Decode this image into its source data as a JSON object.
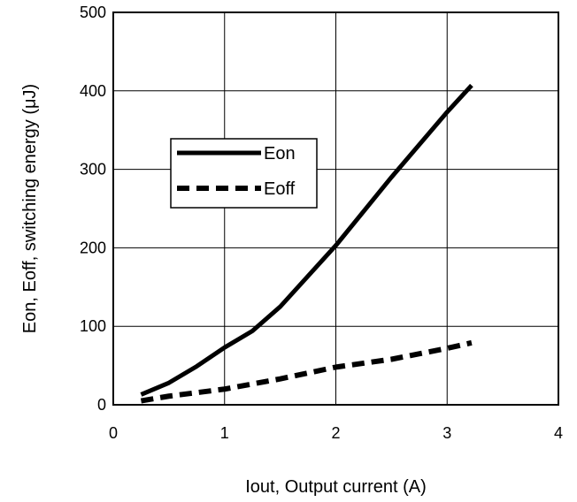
{
  "chart_data": {
    "type": "line",
    "xlabel": "Iout, Output current (A)",
    "ylabel": "Eon, Eoff, switching energy (μJ)",
    "xlim": [
      0,
      4
    ],
    "ylim": [
      0,
      500
    ],
    "x_ticks": [
      "0",
      "1",
      "2",
      "3",
      "4"
    ],
    "y_ticks": [
      "0",
      "100",
      "200",
      "300",
      "400",
      "500"
    ],
    "grid": true,
    "legend_position": "upper-left",
    "series": [
      {
        "name": "Eon",
        "style": "solid",
        "x": [
          0.25,
          0.5,
          0.75,
          1.0,
          1.25,
          1.5,
          2.0,
          2.5,
          3.0,
          3.22
        ],
        "y": [
          13,
          28,
          49,
          73,
          94,
          125,
          203,
          290,
          373,
          407
        ]
      },
      {
        "name": "Eoff",
        "style": "dashed",
        "x": [
          0.25,
          0.5,
          1.0,
          1.5,
          2.0,
          2.5,
          3.0,
          3.22
        ],
        "y": [
          5,
          11,
          20,
          33,
          48,
          58,
          72,
          79
        ]
      }
    ]
  },
  "colors": {
    "line": "#000000",
    "grid": "#000000",
    "background": "#ffffff"
  }
}
